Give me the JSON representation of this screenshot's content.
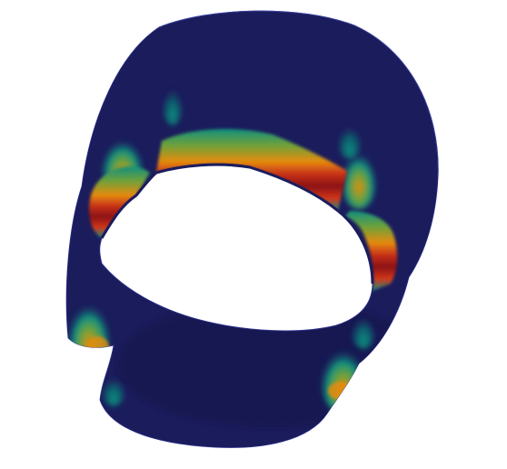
{
  "scene": {
    "object": "deformed-cylindrical-shell",
    "background_color": "#ffffff",
    "colormap": [
      "#1b1c5c",
      "#12506a",
      "#0f8f7e",
      "#6fa23a",
      "#e58b0e",
      "#d2371a",
      "#8c1212"
    ],
    "base_field_color": "#1b1c5c",
    "edge_color": "#2a2f8a"
  }
}
